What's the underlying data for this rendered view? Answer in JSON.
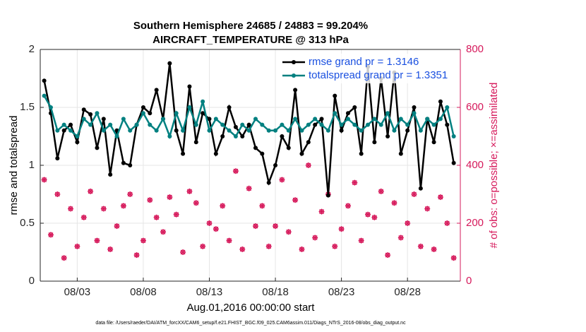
{
  "chart_data": {
    "type": "line",
    "title": "Southern Hemisphere 24685 / 24883 = 99.204%",
    "subtitle": "AIRCRAFT_TEMPERATURE @ 313 hPa",
    "xlabel": "Aug.01,2016 00:00:00 start",
    "ylabel": "rmse and totalspread",
    "y2label": "# of obs: o=possible; ×=assimilated",
    "footer": "data file: /Users/raeder/DAI/ATM_forcXX/CAM6_setup/f.e21.FHIST_BGC.f09_025.CAM6assim.011/Diags_NTrS_2016-08/obs_diag_output.nc",
    "x": [
      -0.5,
      0,
      0.5,
      1,
      1.5,
      2,
      2.5,
      3,
      3.5,
      4,
      4.5,
      5,
      5.5,
      6,
      6.5,
      7,
      7.5,
      8,
      8.5,
      9,
      9.5,
      10,
      10.5,
      11,
      11.5,
      12,
      12.5,
      13,
      13.5,
      14,
      14.5,
      15,
      15.5,
      16,
      16.5,
      17,
      17.5,
      18,
      18.5,
      19,
      19.5,
      20,
      20.5,
      21,
      21.5,
      22,
      22.5,
      23,
      23.5,
      24,
      24.5,
      25,
      25.5,
      26,
      26.5,
      27,
      27.5,
      28,
      28.5,
      29,
      29.5,
      30,
      30.5
    ],
    "xlim": [
      -0.8,
      31
    ],
    "xticks": [
      {
        "value": 2,
        "label": "08/03"
      },
      {
        "value": 7,
        "label": "08/08"
      },
      {
        "value": 12,
        "label": "08/13"
      },
      {
        "value": 17,
        "label": "08/18"
      },
      {
        "value": 22,
        "label": "08/23"
      },
      {
        "value": 27,
        "label": "08/28"
      }
    ],
    "ylim": [
      0,
      2
    ],
    "yticks": [
      0,
      0.5,
      1,
      1.5,
      2
    ],
    "y2lim": [
      0,
      800
    ],
    "y2ticks": [
      0,
      200,
      400,
      600,
      800
    ],
    "grid": true,
    "legend": "upper right",
    "series": [
      {
        "name": "rmse grand pr = 1.3146",
        "color": "#000000",
        "values": [
          1.73,
          1.45,
          1.06,
          1.3,
          1.35,
          1.2,
          1.48,
          1.44,
          1.15,
          1.4,
          0.92,
          1.3,
          1.02,
          1.0,
          1.35,
          1.5,
          1.45,
          1.65,
          1.4,
          1.88,
          1.3,
          1.1,
          1.68,
          1.2,
          1.45,
          1.4,
          1.1,
          1.25,
          1.5,
          1.33,
          1.25,
          1.35,
          1.15,
          1.1,
          0.85,
          1.0,
          1.25,
          1.15,
          1.65,
          1.1,
          1.2,
          1.35,
          1.4,
          0.74,
          1.6,
          1.3,
          1.45,
          1.5,
          1.1,
          1.85,
          1.2,
          1.75,
          1.25,
          1.8,
          1.1,
          1.3,
          1.5,
          0.8,
          1.4,
          1.2,
          1.55,
          1.35,
          1.02
        ]
      },
      {
        "name": "totalspread grand pr = 1.3351",
        "color": "#008080",
        "values": [
          1.6,
          1.5,
          1.3,
          1.35,
          1.3,
          1.25,
          1.4,
          1.35,
          1.45,
          1.3,
          1.35,
          1.25,
          1.4,
          1.3,
          1.35,
          1.45,
          1.35,
          1.3,
          1.4,
          1.25,
          1.45,
          1.3,
          1.5,
          1.35,
          1.55,
          1.3,
          1.4,
          1.35,
          1.3,
          1.25,
          1.35,
          1.3,
          1.4,
          1.35,
          1.3,
          1.3,
          1.35,
          1.3,
          1.4,
          1.3,
          1.35,
          1.4,
          1.35,
          1.3,
          1.45,
          1.35,
          1.4,
          1.35,
          1.3,
          1.35,
          1.4,
          1.35,
          1.45,
          1.3,
          1.4,
          1.35,
          1.45,
          1.3,
          1.4,
          1.35,
          1.4,
          1.5,
          1.25
        ]
      }
    ],
    "obs_color": "#d6195b",
    "obs_possible": [
      350,
      160,
      300,
      80,
      250,
      120,
      220,
      310,
      140,
      250,
      110,
      190,
      260,
      300,
      90,
      140,
      280,
      220,
      170,
      290,
      230,
      100,
      310,
      270,
      120,
      200,
      180,
      260,
      140,
      380,
      110,
      320,
      190,
      260,
      120,
      190,
      350,
      170,
      280,
      110,
      400,
      150,
      240,
      300,
      120,
      180,
      260,
      340,
      140,
      230,
      220,
      310,
      90,
      270,
      150,
      200,
      300,
      120,
      250,
      110,
      290,
      200,
      80
    ],
    "obs_assimilated": [
      350,
      160,
      300,
      80,
      250,
      120,
      220,
      310,
      140,
      250,
      110,
      190,
      260,
      300,
      90,
      140,
      280,
      220,
      170,
      290,
      230,
      100,
      310,
      270,
      120,
      200,
      180,
      260,
      140,
      380,
      110,
      320,
      190,
      260,
      120,
      190,
      350,
      170,
      280,
      110,
      400,
      150,
      240,
      300,
      120,
      180,
      260,
      340,
      140,
      230,
      220,
      310,
      90,
      270,
      150,
      200,
      300,
      120,
      250,
      110,
      290,
      200,
      80
    ]
  }
}
